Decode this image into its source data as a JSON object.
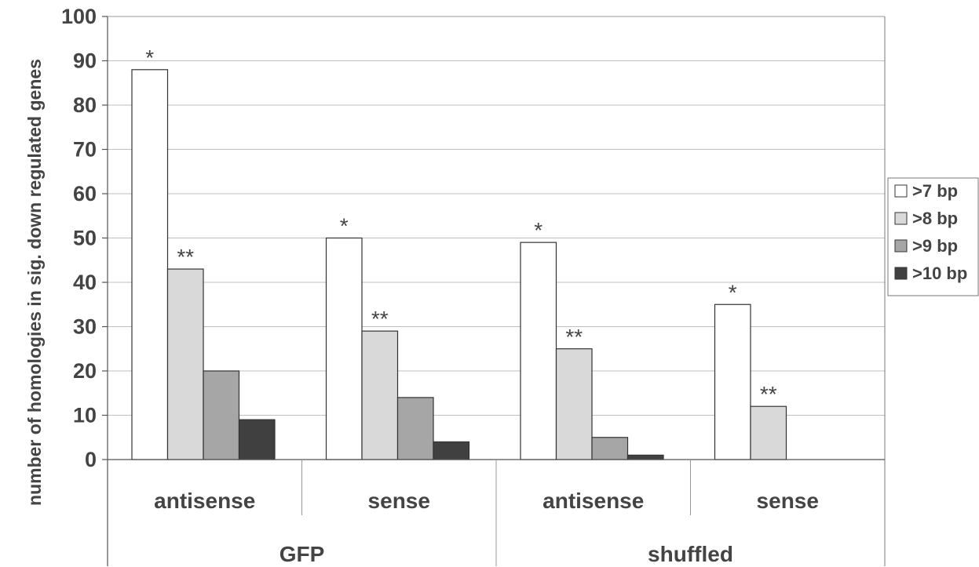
{
  "chart_data": {
    "type": "bar",
    "ylabel": "number of homologies in sig. down regulated genes",
    "ylim": [
      0,
      100
    ],
    "yticks": [
      "0",
      "10",
      "20",
      "30",
      "40",
      "50",
      "60",
      "70",
      "80",
      "90",
      "100"
    ],
    "grid": true,
    "legend_position": "right",
    "categories": [
      "antisense",
      "sense",
      "antisense",
      "sense"
    ],
    "groups": [
      "GFP",
      "shuffled"
    ],
    "series": [
      {
        "name": ">7 bp",
        "color": "#ffffff",
        "values": [
          88,
          50,
          49,
          35
        ],
        "annotations": [
          "*",
          "*",
          "*",
          "*"
        ]
      },
      {
        "name": ">8 bp",
        "color": "#d9d9d9",
        "values": [
          43,
          29,
          25,
          12
        ],
        "annotations": [
          "**",
          "**",
          "**",
          "**"
        ]
      },
      {
        "name": ">9 bp",
        "color": "#a6a6a6",
        "values": [
          20,
          14,
          5,
          0
        ],
        "annotations": [
          "",
          "",
          "",
          ""
        ]
      },
      {
        "name": ">10 bp",
        "color": "#404040",
        "values": [
          9,
          4,
          1,
          0
        ],
        "annotations": [
          "",
          "",
          "",
          ""
        ]
      }
    ]
  }
}
